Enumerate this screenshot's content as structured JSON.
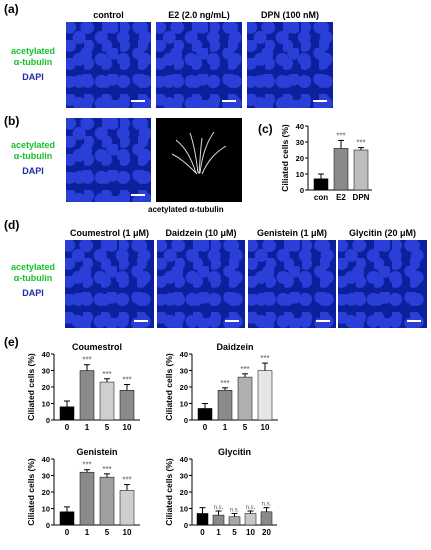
{
  "panel_labels": {
    "a": "(a)",
    "b": "(b)",
    "c": "(c)",
    "d": "(d)",
    "e": "(e)"
  },
  "stain": {
    "line1": "acetylated",
    "line2": "α-tubulin",
    "dapi": "DAPI"
  },
  "panel_a": {
    "titles": [
      "control",
      "E2 (2.0 ng/mL)",
      "DPN (100 nM)"
    ]
  },
  "panel_b": {
    "caption": "acetylated  α-tubulin"
  },
  "panel_d": {
    "titles": [
      "Coumestrol (1 μM)",
      "Daidzein (10 μM)",
      "Genistein (1 μM)",
      "Glycitin (20 μM)"
    ]
  },
  "colors": {
    "green": "#16c02a",
    "blue": "#1f2aa5",
    "black": "#000000",
    "dgray": "#8a8a8a",
    "lgray": "#cfcfcf",
    "vlgray": "#e6e6e6"
  },
  "chart_data": [
    {
      "id": "c",
      "type": "bar",
      "ylabel": "Ciliated cells (%)",
      "ylim": [
        0,
        40
      ],
      "yticks": [
        0,
        10,
        20,
        30,
        40
      ],
      "categories": [
        "con",
        "E2",
        "DPN"
      ],
      "values": [
        7,
        26,
        25
      ],
      "errors": [
        3,
        5,
        1.5
      ],
      "annotations": [
        "",
        "***",
        "***"
      ],
      "colors": [
        "#000000",
        "#8a8a8a",
        "#bdbdbd"
      ]
    },
    {
      "id": "e1",
      "type": "bar",
      "title": "Coumestrol",
      "ylabel": "Ciliated cells (%)",
      "ylim": [
        0,
        40
      ],
      "yticks": [
        0,
        10,
        20,
        30,
        40
      ],
      "categories": [
        "0",
        "1",
        "5",
        "10"
      ],
      "unit": "μM",
      "values": [
        8,
        30,
        23,
        18
      ],
      "errors": [
        3.5,
        3.5,
        2,
        3.5
      ],
      "annotations": [
        "",
        "***",
        "***",
        "***"
      ],
      "colors": [
        "#000000",
        "#8a8a8a",
        "#cfcfcf",
        "#8a8a8a"
      ]
    },
    {
      "id": "e2",
      "type": "bar",
      "title": "Daidzein",
      "ylabel": "Ciliated cells (%)",
      "ylim": [
        0,
        40
      ],
      "yticks": [
        0,
        10,
        20,
        30,
        40
      ],
      "categories": [
        "0",
        "1",
        "5",
        "10"
      ],
      "unit": "μM",
      "values": [
        7,
        18,
        26,
        30
      ],
      "errors": [
        3,
        1.5,
        2,
        4.5
      ],
      "annotations": [
        "",
        "***",
        "***",
        "***"
      ],
      "colors": [
        "#000000",
        "#8a8a8a",
        "#b0b0b0",
        "#e6e6e6"
      ]
    },
    {
      "id": "e3",
      "type": "bar",
      "title": "Genistein",
      "ylabel": "Ciliated cells (%)",
      "ylim": [
        0,
        40
      ],
      "yticks": [
        0,
        10,
        20,
        30,
        40
      ],
      "categories": [
        "0",
        "1",
        "5",
        "10"
      ],
      "unit": "μM",
      "values": [
        8,
        32,
        29,
        21
      ],
      "errors": [
        3,
        1.5,
        2,
        3.5
      ],
      "annotations": [
        "",
        "***",
        "***",
        "***"
      ],
      "colors": [
        "#000000",
        "#8a8a8a",
        "#a0a0a0",
        "#cfcfcf"
      ]
    },
    {
      "id": "e4",
      "type": "bar",
      "title": "Glycitin",
      "ylabel": "Ciliated cells (%)",
      "ylim": [
        0,
        40
      ],
      "yticks": [
        0,
        10,
        20,
        30,
        40
      ],
      "categories": [
        "0",
        "1",
        "5",
        "10",
        "20"
      ],
      "unit": "μM",
      "values": [
        7,
        6,
        5,
        7,
        8
      ],
      "errors": [
        3.5,
        2.5,
        2,
        1.5,
        2.5
      ],
      "annotations": [
        "",
        "n.s.",
        "n.s.",
        "n.s.",
        "n.s."
      ],
      "colors": [
        "#000000",
        "#8a8a8a",
        "#a8a8a8",
        "#c8c8c8",
        "#8a8a8a"
      ]
    }
  ]
}
